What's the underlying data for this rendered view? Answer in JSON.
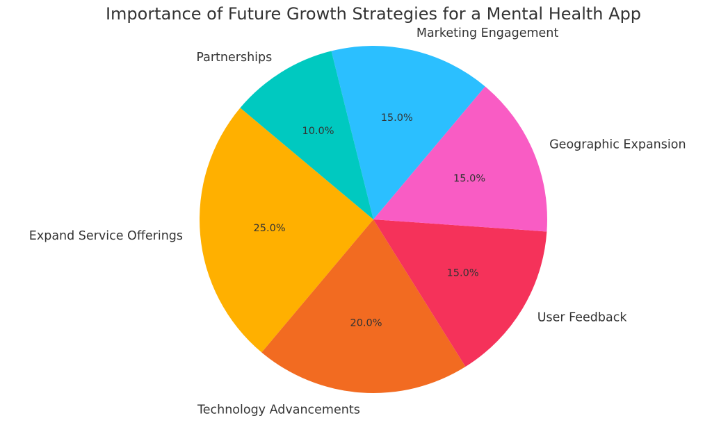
{
  "chart_data": {
    "type": "pie",
    "title": "Importance of Future Growth Strategies for a Mental Health App",
    "categories": [
      "Expand Service Offerings",
      "Technology Advancements",
      "User Feedback",
      "Geographic Expansion",
      "Marketing Engagement",
      "Partnerships"
    ],
    "values": [
      25,
      20,
      15,
      15,
      15,
      10
    ],
    "percent_labels": [
      "25.0%",
      "20.0%",
      "15.0%",
      "15.0%",
      "15.0%",
      "10.0%"
    ],
    "colors": [
      "#FFB000",
      "#F26B21",
      "#F5325A",
      "#F95CC4",
      "#2BBFFF",
      "#00C9C0"
    ],
    "start_angle_deg": 140,
    "direction": "counterclockwise",
    "legend": "none"
  }
}
